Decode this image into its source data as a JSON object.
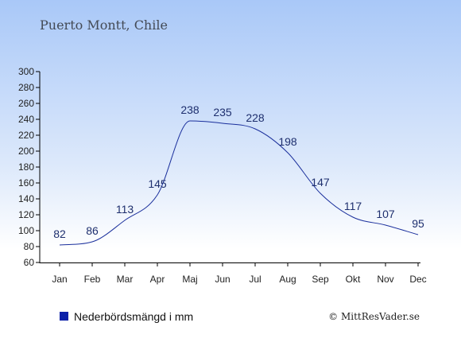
{
  "title": "Puerto Montt, Chile",
  "legend": {
    "label": "Nederbördsmängd i mm",
    "color": "#0a1fa8"
  },
  "credit": "© MittResVader.se",
  "colors": {
    "line": "#1a2f9c",
    "label": "#1e2f6e",
    "axis": "#000000"
  },
  "chart_data": {
    "type": "line",
    "categories": [
      "Jan",
      "Feb",
      "Mar",
      "Apr",
      "Maj",
      "Jun",
      "Jul",
      "Aug",
      "Sep",
      "Okt",
      "Nov",
      "Dec"
    ],
    "series": [
      {
        "values": [
          82,
          86,
          113,
          145,
          238,
          235,
          228,
          198,
          147,
          117,
          107,
          95
        ]
      }
    ],
    "data_labels": [
      "82",
      "86",
      "113",
      "145",
      "238",
      "235",
      "228",
      "198",
      "147",
      "117",
      "107",
      "95"
    ],
    "yticks": [
      "60",
      "80",
      "100",
      "120",
      "140",
      "160",
      "180",
      "200",
      "220",
      "240",
      "260",
      "280",
      "300"
    ],
    "ylim": [
      60,
      300
    ],
    "grid": false,
    "legend_position": "bottom-left"
  }
}
